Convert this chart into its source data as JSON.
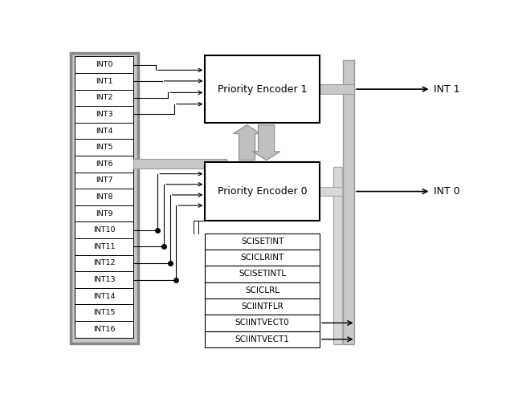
{
  "bg_color": "#ffffff",
  "int_labels": [
    "INT0",
    "INT1",
    "INT2",
    "INT3",
    "INT4",
    "INT5",
    "INT6",
    "INT7",
    "INT8",
    "INT9",
    "INT10",
    "INT11",
    "INT12",
    "INT13",
    "INT14",
    "INT15",
    "INT16"
  ],
  "sci_labels": [
    "SCISETINT",
    "SCICLRINT",
    "SCISETINTL",
    "SCICLRL",
    "SCIINTFLR",
    "SCIINTVECT0",
    "SCIINTVECT1"
  ],
  "pe1_label": "Priority Encoder 1",
  "pe0_label": "Priority Encoder 0",
  "int1_label": "INT 1",
  "int0_label": "INT 0",
  "gray_bus": "#c8c8c8",
  "gray_bus_edge": "#999999",
  "gray_outer": "#b0b0b0"
}
